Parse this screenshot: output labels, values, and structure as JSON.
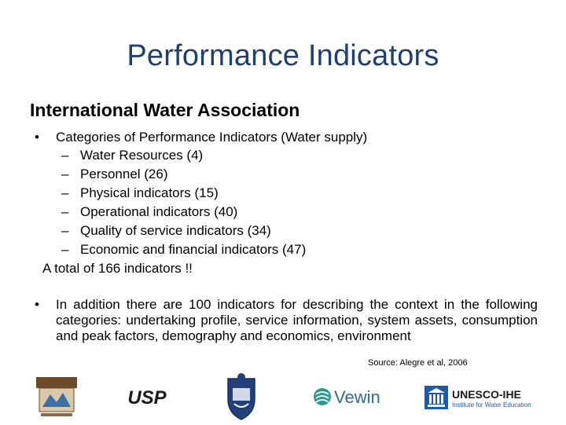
{
  "slide": {
    "title": "Performance Indicators",
    "subtitle": "International Water Association",
    "bullet_symbol": "•",
    "dash_symbol": "–",
    "bullet1": {
      "text": "Categories of Performance Indicators (Water supply)",
      "items": [
        "Water Resources (4)",
        "Personnel (26)",
        "Physical indicators (15)",
        "Operational indicators (40)",
        "Quality of service indicators (34)",
        "Economic and financial indicators (47)"
      ],
      "total": "A total of 166 indicators !!"
    },
    "bullet2": "In addition there are 100 indicators for describing the context in the following categories: undertaking profile, service information, system assets, consumption and peak factors, demography and economics, environment",
    "source": "Source: Alegre et al, 2006"
  },
  "logos": {
    "usp": "USP",
    "vewin": "Vewin",
    "unesco_title": "UNESCO-IHE",
    "unesco_subtitle": "Institute for Water Education"
  },
  "colors": {
    "title": "#1f3f73",
    "unesco_blue": "#1e5aa8",
    "vewin_green": "#2e9a8c"
  }
}
